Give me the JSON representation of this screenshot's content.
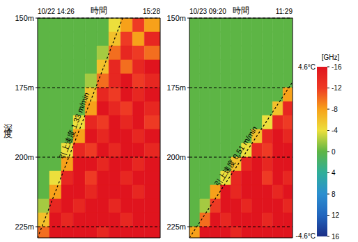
{
  "chart_data": [
    {
      "type": "heatmap",
      "xlabel": "時間",
      "ylabel": "深度",
      "xlim": [
        866,
        928
      ],
      "xticks": [
        {
          "value": 866,
          "label": "10/22 14:26"
        },
        {
          "value": 928,
          "label": "15:28"
        }
      ],
      "ylim": [
        150,
        229
      ],
      "yticks": [
        {
          "value": 150,
          "label": "150m"
        },
        {
          "value": 175,
          "label": "175m"
        },
        {
          "value": 200,
          "label": "200m"
        },
        {
          "value": 225,
          "label": "225m"
        }
      ],
      "grid": true,
      "x_edges": [
        866,
        872,
        878,
        884,
        890,
        896,
        902,
        908,
        914,
        920,
        928
      ],
      "y_edges": [
        150,
        155,
        160,
        165,
        170,
        175,
        180,
        185,
        190,
        195,
        200,
        205,
        210,
        215,
        220,
        225,
        229
      ],
      "cells": [
        [
          0,
          0,
          0,
          0,
          0,
          0,
          -4,
          -8,
          -12,
          -8
        ],
        [
          0,
          0,
          0,
          0,
          0,
          0,
          -6,
          -12,
          -8,
          -14
        ],
        [
          0,
          0,
          0,
          0,
          0,
          -2,
          -10,
          -14,
          -12,
          -10
        ],
        [
          0,
          0,
          0,
          0,
          0,
          -6,
          -14,
          -10,
          -14,
          -16
        ],
        [
          0,
          0,
          0,
          0,
          -2,
          -10,
          -14,
          -16,
          -12,
          -14
        ],
        [
          0,
          0,
          0,
          0,
          -6,
          -14,
          -12,
          -16,
          -14,
          -16
        ],
        [
          0,
          0,
          0,
          0,
          -8,
          -16,
          -14,
          -12,
          -16,
          -14
        ],
        [
          0,
          0,
          0,
          -4,
          -14,
          -12,
          -16,
          -14,
          -16,
          -12
        ],
        [
          0,
          0,
          0,
          -8,
          -16,
          -14,
          -16,
          -16,
          -14,
          -16
        ],
        [
          0,
          0,
          -4,
          -14,
          -12,
          -16,
          -14,
          -16,
          -16,
          -14
        ],
        [
          0,
          0,
          -8,
          -16,
          -16,
          -14,
          -16,
          -16,
          -14,
          -16
        ],
        [
          0,
          -4,
          -14,
          -16,
          -12,
          -16,
          -16,
          -14,
          -16,
          -16
        ],
        [
          0,
          -8,
          -16,
          -16,
          -14,
          -16,
          -16,
          -16,
          -14,
          -16
        ],
        [
          -2,
          -14,
          -16,
          -14,
          -16,
          -16,
          -14,
          -16,
          -16,
          -16
        ],
        [
          -6,
          -16,
          -14,
          -16,
          -16,
          -16,
          -16,
          -14,
          -16,
          -16
        ],
        [
          -10,
          -16,
          -16,
          -16,
          -16,
          -14,
          -16,
          -16,
          -16,
          -16
        ]
      ],
      "annotation": {
        "text": "引上速度 1.33 m/min",
        "x": [
          866,
          909
        ],
        "y": [
          229,
          150
        ]
      }
    },
    {
      "type": "heatmap",
      "xlabel": "時間",
      "xlim": [
        560,
        689
      ],
      "xticks": [
        {
          "value": 560,
          "label": "10/23 09:20"
        },
        {
          "value": 689,
          "label": "11:29"
        }
      ],
      "ylim": [
        150,
        229
      ],
      "yticks": [
        {
          "value": 150,
          "label": "150m"
        },
        {
          "value": 175,
          "label": "175m"
        },
        {
          "value": 200,
          "label": "200m"
        },
        {
          "value": 225,
          "label": "225m"
        }
      ],
      "grid": true,
      "x_edges": [
        560,
        573,
        586,
        599,
        612,
        625,
        638,
        651,
        664,
        677,
        689
      ],
      "y_edges": [
        150,
        155,
        160,
        165,
        170,
        175,
        180,
        185,
        190,
        195,
        200,
        205,
        210,
        215,
        220,
        225,
        229
      ],
      "cells": [
        [
          0,
          0,
          0,
          0,
          0,
          0,
          0,
          0,
          0,
          0
        ],
        [
          0,
          0,
          0,
          0,
          0,
          0,
          0,
          0,
          0,
          0
        ],
        [
          0,
          0,
          0,
          0,
          0,
          0,
          0,
          0,
          0,
          0
        ],
        [
          0,
          0,
          0,
          0,
          0,
          0,
          0,
          0,
          0,
          0
        ],
        [
          0,
          0,
          0,
          0,
          0,
          0,
          0,
          0,
          0,
          0
        ],
        [
          0,
          0,
          0,
          0,
          0,
          0,
          0,
          0,
          0,
          -8
        ],
        [
          0,
          0,
          0,
          0,
          0,
          0,
          0,
          0,
          -6,
          -14
        ],
        [
          0,
          0,
          0,
          0,
          0,
          0,
          0,
          -4,
          -14,
          -12
        ],
        [
          0,
          0,
          0,
          0,
          0,
          0,
          -6,
          -14,
          -16,
          -14
        ],
        [
          0,
          0,
          0,
          0,
          0,
          -4,
          -14,
          -12,
          -16,
          -16
        ],
        [
          0,
          0,
          0,
          0,
          -6,
          -14,
          -16,
          -14,
          -16,
          -16
        ],
        [
          0,
          0,
          0,
          -4,
          -14,
          -16,
          -16,
          -12,
          -16,
          -14
        ],
        [
          0,
          0,
          -8,
          -16,
          -14,
          -16,
          -16,
          -16,
          -14,
          -16
        ],
        [
          0,
          -2,
          -12,
          -16,
          -16,
          -14,
          -16,
          -16,
          -16,
          -14
        ],
        [
          0,
          -10,
          -16,
          -14,
          -16,
          -16,
          -16,
          -14,
          -16,
          -16
        ],
        [
          -8,
          -16,
          -16,
          -16,
          -14,
          -16,
          -16,
          -16,
          -16,
          -16
        ]
      ],
      "annotation": {
        "text": "引上速度 0.51 m/min",
        "x": [
          560,
          689
        ],
        "y": [
          229,
          173
        ]
      },
      "colorbar": {
        "range": [
          -16,
          16
        ],
        "ticks": [
          -16,
          -12,
          -8,
          -4,
          0,
          4,
          8,
          12,
          16
        ],
        "label": "[GHz]",
        "top_label": "4.6°C",
        "bottom_label": "-4.6°C"
      }
    }
  ]
}
